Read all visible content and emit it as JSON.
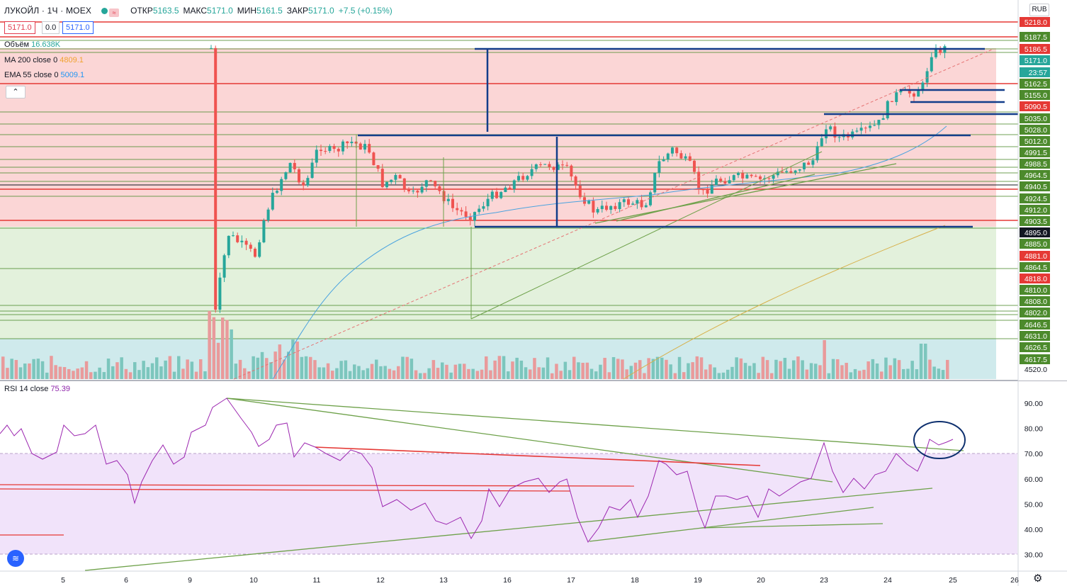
{
  "header": {
    "symbol": "ЛУКОЙЛ · 1Ч · MOEX",
    "ohlc": {
      "open_label": "ОТКР",
      "open": "5163.5",
      "high_label": "МАКС",
      "high": "5171.0",
      "low_label": "МИН",
      "low": "5161.5",
      "close_label": "ЗАКР",
      "close": "5171.0",
      "change": "+7.5 (+0.15%)"
    },
    "bid": "5171.0",
    "spread": "0.0",
    "ask": "5171.0",
    "currency": "RUB"
  },
  "legends": {
    "volume": {
      "label": "Объём",
      "value": "16.638K"
    },
    "ma": {
      "label": "MA 200 close 0",
      "value": "4809.1",
      "color": "#f0a22e"
    },
    "ema": {
      "label": "EMA 55 close 0",
      "value": "5009.1",
      "color": "#2196f3"
    },
    "rsi": {
      "label": "RSI 14 close",
      "value": "75.39",
      "color": "#8e24aa"
    }
  },
  "colors": {
    "up": "#26a69a",
    "down": "#ef5350",
    "accent": "#2962ff",
    "hline_red": "#e53935",
    "hline_green": "#4c8a2c",
    "trend_blue": "#0d3c8c"
  },
  "chart_data": [
    {
      "type": "candlestick",
      "title": "ЛУКОЙЛ · 1Ч · MOEX",
      "price_axis": {
        "labels": [
          "5218.0",
          "5187.5",
          "5186.5",
          "5171.0",
          "23:57",
          "5162.5",
          "5155.0",
          "5090.5",
          "5035.0",
          "5028.0",
          "5012.0",
          "4991.5",
          "4988.5",
          "4964.5",
          "4940.5",
          "4924.5",
          "4912.0",
          "4903.5",
          "4895.0",
          "4885.0",
          "4881.0",
          "4864.5",
          "4818.0",
          "4810.0",
          "4808.0",
          "4802.0",
          "4646.5",
          "4631.0",
          "4626.5",
          "4617.5",
          "4520.0"
        ],
        "label_colors": [
          "red",
          "green",
          "red",
          "teal",
          "teal",
          "green",
          "green",
          "red",
          "green",
          "green",
          "green",
          "green",
          "green",
          "green",
          "green",
          "green",
          "green",
          "green",
          "black",
          "green",
          "red",
          "green",
          "red",
          "green",
          "green",
          "green",
          "green",
          "green",
          "green",
          "green",
          "white"
        ]
      },
      "x_axis": {
        "tick_labels": [
          "5",
          "6",
          "9",
          "10",
          "11",
          "12",
          "13",
          "16",
          "17",
          "18",
          "19",
          "20",
          "23",
          "24",
          "25",
          "26"
        ]
      },
      "horizontal_levels": {
        "red": [
          5218.0,
          5186.5,
          5090.5,
          4881.0,
          4818.0
        ],
        "green": [
          5187.5,
          5162.5,
          5155.0,
          5035.0,
          5028.0,
          5012.0,
          4991.5,
          4988.5,
          4964.5,
          4940.5,
          4924.5,
          4912.0,
          4903.5,
          4885.0,
          4864.5,
          4810.0,
          4808.0,
          4802.0,
          4646.5,
          4631.0
        ]
      },
      "current_price": 5171.0,
      "countdown": "23:57",
      "series": [
        {
          "name": "MA 200 close 0",
          "last": 4809.1
        },
        {
          "name": "EMA 55 close 0",
          "last": 5009.1
        }
      ],
      "volume_last": "16.638K"
    },
    {
      "type": "line",
      "title": "RSI 14 close",
      "last": 75.39,
      "ylim": [
        25,
        95
      ],
      "y_ticks": [
        "90.00",
        "80.00",
        "70.00",
        "60.00",
        "50.00",
        "40.00",
        "30.00"
      ],
      "band": [
        30,
        70
      ]
    }
  ]
}
